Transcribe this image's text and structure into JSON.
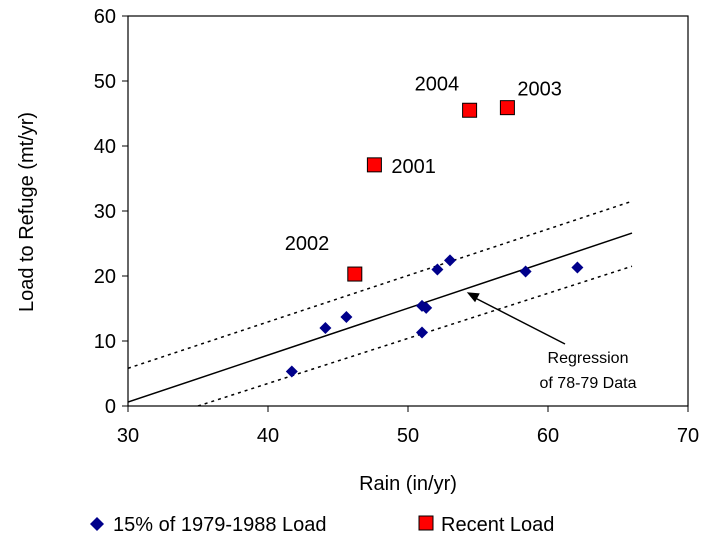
{
  "chart_data": {
    "type": "scatter",
    "xlabel": "Rain (in/yr)",
    "ylabel": "Load to Refuge (mt/yr)",
    "xlim": [
      30,
      70
    ],
    "ylim": [
      0,
      60
    ],
    "xticks": [
      30,
      40,
      50,
      60,
      70
    ],
    "yticks": [
      0,
      10,
      20,
      30,
      40,
      50,
      60
    ],
    "legend_position": "bottom",
    "series": [
      {
        "name": "15% of 1979-1988 Load",
        "marker": "diamond",
        "color": "#00008B",
        "points": [
          {
            "x": 41.7,
            "y": 5.3
          },
          {
            "x": 44.1,
            "y": 12.0
          },
          {
            "x": 45.6,
            "y": 13.7
          },
          {
            "x": 51.0,
            "y": 15.4
          },
          {
            "x": 51.3,
            "y": 15.1
          },
          {
            "x": 51.0,
            "y": 11.3
          },
          {
            "x": 52.1,
            "y": 21.0
          },
          {
            "x": 53.0,
            "y": 22.4
          },
          {
            "x": 58.4,
            "y": 20.7
          },
          {
            "x": 62.1,
            "y": 21.3
          }
        ]
      },
      {
        "name": "Recent Load",
        "marker": "square",
        "color": "#FF0000",
        "points": [
          {
            "x": 46.2,
            "y": 20.3,
            "label": "2002"
          },
          {
            "x": 47.6,
            "y": 37.1,
            "label": "2001"
          },
          {
            "x": 54.4,
            "y": 45.5,
            "label": "2004"
          },
          {
            "x": 57.1,
            "y": 45.9,
            "label": "2003"
          }
        ]
      }
    ],
    "lines": [
      {
        "style": "solid",
        "x1": 30,
        "y1": 0.6,
        "x2": 66,
        "y2": 26.6
      },
      {
        "style": "dotted",
        "x1": 30,
        "y1": 5.8,
        "x2": 66,
        "y2": 31.5
      },
      {
        "style": "dotted",
        "x1": 35,
        "y1": 0,
        "x2": 66,
        "y2": 21.5
      }
    ],
    "annotation": {
      "lines": [
        "Regression",
        "of 78-79 Data"
      ],
      "arrow_to": {
        "x": 54.2,
        "y": 17.5
      }
    }
  }
}
